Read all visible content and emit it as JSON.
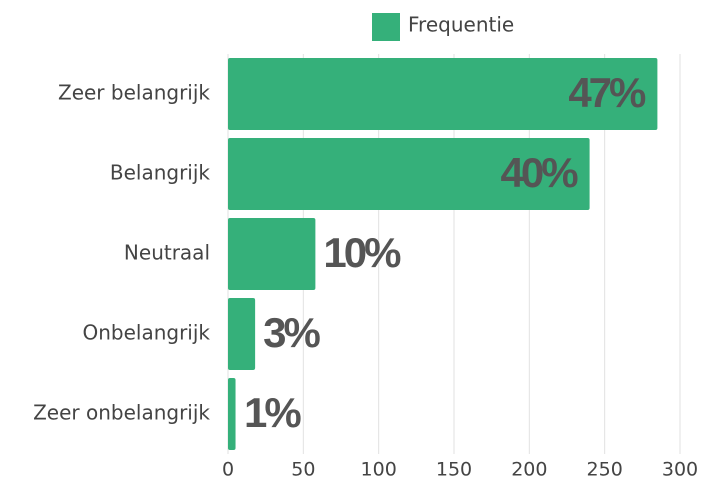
{
  "chart_data": {
    "type": "hbar",
    "categories": [
      "Zeer belangrijk",
      "Belangrijk",
      "Neutraal",
      "Onbelangrijk",
      "Zeer onbelangrijk"
    ],
    "series": [
      {
        "name": "Frequentie",
        "color": "#35b07a",
        "values": [
          285,
          240,
          58,
          18,
          5
        ],
        "value_labels": [
          "47%",
          "40%",
          "10%",
          "3%",
          "1%"
        ]
      }
    ],
    "xlim": [
      0,
      300
    ],
    "xticks": [
      0,
      50,
      100,
      150,
      200,
      250,
      300
    ],
    "grid": true,
    "legend": "top"
  }
}
